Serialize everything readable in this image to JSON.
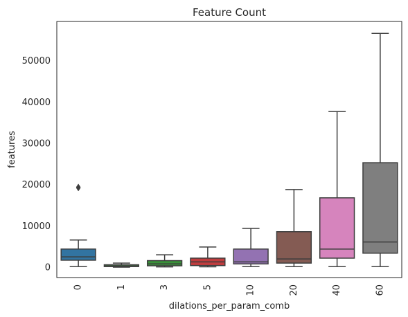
{
  "chart_data": {
    "type": "box",
    "title": "Feature Count",
    "xlabel": "dilations_per_param_comb",
    "ylabel": "features",
    "ylim": [
      -2500,
      59500
    ],
    "yticks": [
      0,
      10000,
      20000,
      30000,
      40000,
      50000
    ],
    "ytick_labels": [
      "0",
      "10000",
      "20000",
      "30000",
      "40000",
      "50000"
    ],
    "grid": false,
    "categories": [
      "0",
      "1",
      "3",
      "5",
      "10",
      "20",
      "40",
      "60"
    ],
    "boxes": [
      {
        "category": "0",
        "whisker_low": 150,
        "q1": 1700,
        "median": 2500,
        "q3": 4400,
        "whisker_high": 6600,
        "outliers": [
          19200,
          19400
        ],
        "color": "#3274a1"
      },
      {
        "category": "1",
        "whisker_low": 20,
        "q1": 150,
        "median": 300,
        "q3": 600,
        "whisker_high": 1000,
        "outliers": [],
        "color": "#3a923a"
      },
      {
        "category": "3",
        "whisker_low": 80,
        "q1": 350,
        "median": 800,
        "q3": 1600,
        "whisker_high": 3000,
        "outliers": [],
        "color": "#3a923a"
      },
      {
        "category": "5",
        "whisker_low": 100,
        "q1": 400,
        "median": 1300,
        "q3": 2200,
        "whisker_high": 4900,
        "outliers": [],
        "color": "#c03d3e"
      },
      {
        "category": "10",
        "whisker_low": 150,
        "q1": 800,
        "median": 1300,
        "q3": 4400,
        "whisker_high": 9400,
        "outliers": [],
        "color": "#9372b2"
      },
      {
        "category": "20",
        "whisker_low": 150,
        "q1": 1000,
        "median": 2000,
        "q3": 8600,
        "whisker_high": 18800,
        "outliers": [],
        "color": "#845b53"
      },
      {
        "category": "40",
        "whisker_low": 150,
        "q1": 2200,
        "median": 4400,
        "q3": 16800,
        "whisker_high": 37700,
        "outliers": [],
        "color": "#d684bd"
      },
      {
        "category": "60",
        "whisker_low": 150,
        "q1": 3400,
        "median": 6100,
        "q3": 25300,
        "whisker_high": 56600,
        "outliers": [],
        "color": "#7f7f7f"
      }
    ]
  }
}
